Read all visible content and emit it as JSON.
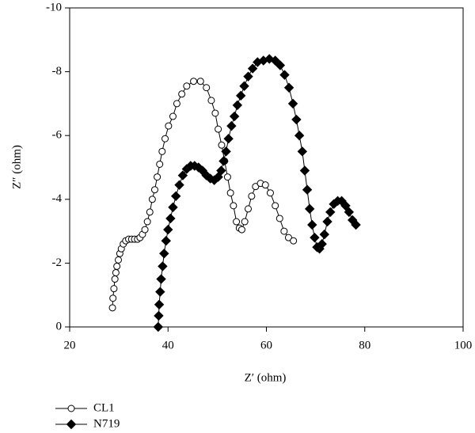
{
  "chart_data": {
    "type": "scatter",
    "xlabel": "Z′ (ohm)",
    "ylabel": "Z″ (ohm)",
    "xlim": [
      20,
      100
    ],
    "xticks": [
      20,
      40,
      60,
      80,
      100
    ],
    "ylim": [
      0,
      -10
    ],
    "yticks": [
      0,
      -2,
      -4,
      -6,
      -8,
      -10
    ],
    "grid": false,
    "legend": "bottom-left",
    "series": [
      {
        "name": "CL1",
        "color": "#000000",
        "marker": "circle",
        "marker_fill": "#ffffff",
        "x": [
          28.7,
          28.8,
          29.0,
          29.2,
          29.4,
          29.6,
          29.9,
          30.2,
          30.5,
          30.9,
          31.4,
          32.0,
          32.6,
          33.2,
          33.8,
          34.3,
          34.8,
          35.3,
          35.8,
          36.3,
          36.8,
          37.3,
          37.8,
          38.3,
          38.8,
          39.4,
          40.1,
          41.0,
          41.8,
          42.8,
          43.8,
          45.2,
          46.6,
          47.8,
          48.8,
          49.6,
          50.2,
          50.9,
          51.5,
          52.1,
          52.7,
          53.3,
          53.9,
          54.5,
          55.0,
          55.6,
          56.3,
          57.0,
          57.8,
          58.8,
          59.8,
          60.8,
          61.8,
          62.7,
          63.6,
          64.5,
          65.5
        ],
        "values": [
          -0.6,
          -0.9,
          -1.2,
          -1.5,
          -1.7,
          -1.9,
          -2.1,
          -2.3,
          -2.45,
          -2.6,
          -2.7,
          -2.75,
          -2.75,
          -2.75,
          -2.75,
          -2.8,
          -2.9,
          -3.05,
          -3.3,
          -3.6,
          -4.0,
          -4.3,
          -4.7,
          -5.1,
          -5.5,
          -5.9,
          -6.3,
          -6.6,
          -7.0,
          -7.3,
          -7.55,
          -7.7,
          -7.7,
          -7.5,
          -7.1,
          -6.7,
          -6.2,
          -5.7,
          -5.2,
          -4.7,
          -4.2,
          -3.8,
          -3.3,
          -3.1,
          -3.05,
          -3.3,
          -3.7,
          -4.1,
          -4.4,
          -4.5,
          -4.45,
          -4.2,
          -3.8,
          -3.4,
          -3.0,
          -2.8,
          -2.7
        ]
      },
      {
        "name": "N719",
        "color": "#000000",
        "marker": "diamond",
        "marker_fill": "#000000",
        "x": [
          38.0,
          38.1,
          38.2,
          38.4,
          38.6,
          38.9,
          39.2,
          39.6,
          40.0,
          40.5,
          41.0,
          41.6,
          42.3,
          43.0,
          43.8,
          44.6,
          45.4,
          46.2,
          47.0,
          47.8,
          48.6,
          49.4,
          50.2,
          50.8,
          51.3,
          51.8,
          52.3,
          52.9,
          53.5,
          54.1,
          54.8,
          55.5,
          56.3,
          57.2,
          58.2,
          59.4,
          60.6,
          61.8,
          62.8,
          63.7,
          64.6,
          65.4,
          66.1,
          66.7,
          67.3,
          67.8,
          68.3,
          68.8,
          69.3,
          69.8,
          70.3,
          70.8,
          71.3,
          71.8,
          72.4,
          73.0,
          73.7,
          74.5,
          75.3,
          76.1,
          76.8,
          77.5,
          78.2
        ],
        "values": [
          0,
          -0.35,
          -0.7,
          -1.1,
          -1.5,
          -1.9,
          -2.3,
          -2.7,
          -3.05,
          -3.4,
          -3.75,
          -4.1,
          -4.45,
          -4.75,
          -4.95,
          -5.05,
          -5.05,
          -5.0,
          -4.9,
          -4.75,
          -4.65,
          -4.6,
          -4.7,
          -4.9,
          -5.2,
          -5.5,
          -5.9,
          -6.3,
          -6.6,
          -6.95,
          -7.25,
          -7.55,
          -7.85,
          -8.1,
          -8.3,
          -8.35,
          -8.4,
          -8.35,
          -8.2,
          -7.9,
          -7.5,
          -7.0,
          -6.5,
          -6.0,
          -5.5,
          -4.9,
          -4.3,
          -3.7,
          -3.2,
          -2.8,
          -2.5,
          -2.45,
          -2.6,
          -2.9,
          -3.3,
          -3.6,
          -3.85,
          -3.95,
          -3.95,
          -3.8,
          -3.6,
          -3.35,
          -3.2
        ]
      }
    ]
  }
}
